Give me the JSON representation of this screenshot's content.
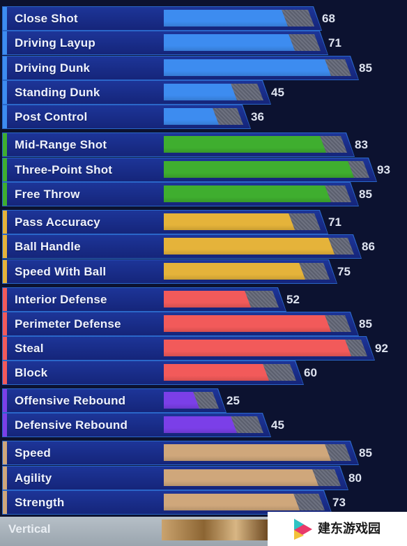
{
  "max_value": 99,
  "colors": {
    "blue": "#3d8cf0",
    "green": "#3fae2f",
    "yellow": "#e5b33a",
    "red": "#f25a5a",
    "purple": "#7b3fe8",
    "tan": "#cfa77b"
  },
  "ratings": [
    {
      "label": "Close Shot",
      "value": 68,
      "color": "blue"
    },
    {
      "label": "Driving Layup",
      "value": 71,
      "color": "blue"
    },
    {
      "label": "Driving Dunk",
      "value": 85,
      "color": "blue"
    },
    {
      "label": "Standing Dunk",
      "value": 45,
      "color": "blue"
    },
    {
      "label": "Post Control",
      "value": 36,
      "color": "blue"
    },
    {
      "label": "Mid-Range Shot",
      "value": 83,
      "color": "green"
    },
    {
      "label": "Three-Point Shot",
      "value": 93,
      "color": "green"
    },
    {
      "label": "Free Throw",
      "value": 85,
      "color": "green"
    },
    {
      "label": "Pass Accuracy",
      "value": 71,
      "color": "yellow"
    },
    {
      "label": "Ball Handle",
      "value": 86,
      "color": "yellow"
    },
    {
      "label": "Speed With Ball",
      "value": 75,
      "color": "yellow"
    },
    {
      "label": "Interior Defense",
      "value": 52,
      "color": "red"
    },
    {
      "label": "Perimeter Defense",
      "value": 85,
      "color": "red"
    },
    {
      "label": "Steal",
      "value": 92,
      "color": "red"
    },
    {
      "label": "Block",
      "value": 60,
      "color": "red"
    },
    {
      "label": "Offensive Rebound",
      "value": 25,
      "color": "purple"
    },
    {
      "label": "Defensive Rebound",
      "value": 45,
      "color": "purple"
    },
    {
      "label": "Speed",
      "value": 85,
      "color": "tan"
    },
    {
      "label": "Agility",
      "value": 80,
      "color": "tan"
    },
    {
      "label": "Strength",
      "value": 73,
      "color": "tan"
    }
  ],
  "partial_row": {
    "label": "Vertical"
  },
  "watermark": {
    "text": "建东游戏园",
    "icon": "play-triangle-logo"
  }
}
